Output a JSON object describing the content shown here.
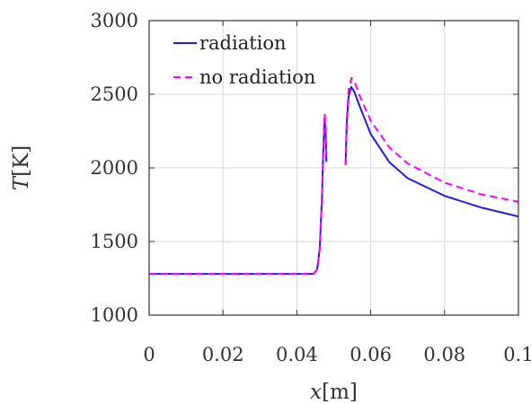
{
  "chart_data": {
    "type": "line",
    "xlabel_var": "x",
    "xlabel_unit": "[m]",
    "ylabel_var": "T",
    "ylabel_unit": "[K]",
    "xlim": [
      0,
      0.1
    ],
    "ylim": [
      1000,
      3000
    ],
    "xticks": [
      0,
      0.02,
      0.04,
      0.06,
      0.08,
      0.1
    ],
    "xtick_labels": [
      "0",
      "0.02",
      "0.04",
      "0.06",
      "0.08",
      "0.1"
    ],
    "yticks": [
      1000,
      1500,
      2000,
      2500,
      3000
    ],
    "ytick_labels": [
      "1000",
      "1500",
      "2000",
      "2500",
      "3000"
    ],
    "grid": true,
    "legend_position": "top-left",
    "series": [
      {
        "name": "radiation",
        "color": "#1f1fdd",
        "dash": "solid",
        "segments": [
          [
            [
              0,
              1280
            ],
            [
              0.02,
              1280
            ],
            [
              0.04,
              1280
            ],
            [
              0.0445,
              1280
            ],
            [
              0.0455,
              1310
            ],
            [
              0.0462,
              1450
            ],
            [
              0.0468,
              1800
            ],
            [
              0.0472,
              2150
            ],
            [
              0.0475,
              2340
            ],
            [
              0.0478,
              2250
            ],
            [
              0.048,
              2040
            ]
          ],
          [
            [
              0.0532,
              2020
            ],
            [
              0.0535,
              2300
            ],
            [
              0.054,
              2480
            ],
            [
              0.0547,
              2550
            ],
            [
              0.0555,
              2520
            ],
            [
              0.057,
              2420
            ],
            [
              0.06,
              2230
            ],
            [
              0.065,
              2040
            ],
            [
              0.07,
              1930
            ],
            [
              0.08,
              1810
            ],
            [
              0.09,
              1730
            ],
            [
              0.1,
              1670
            ]
          ]
        ]
      },
      {
        "name": "no radiation",
        "color": "#ff00ff",
        "dash": "dashed",
        "segments": [
          [
            [
              0,
              1280
            ],
            [
              0.02,
              1280
            ],
            [
              0.04,
              1280
            ],
            [
              0.0445,
              1280
            ],
            [
              0.0455,
              1310
            ],
            [
              0.0462,
              1460
            ],
            [
              0.0468,
              1810
            ],
            [
              0.0472,
              2170
            ],
            [
              0.0475,
              2370
            ],
            [
              0.0478,
              2270
            ],
            [
              0.048,
              2040
            ]
          ],
          [
            [
              0.0532,
              2020
            ],
            [
              0.0535,
              2320
            ],
            [
              0.054,
              2530
            ],
            [
              0.0548,
              2610
            ],
            [
              0.0557,
              2580
            ],
            [
              0.057,
              2490
            ],
            [
              0.06,
              2320
            ],
            [
              0.065,
              2140
            ],
            [
              0.07,
              2030
            ],
            [
              0.08,
              1900
            ],
            [
              0.09,
              1820
            ],
            [
              0.1,
              1770
            ]
          ]
        ]
      }
    ]
  }
}
